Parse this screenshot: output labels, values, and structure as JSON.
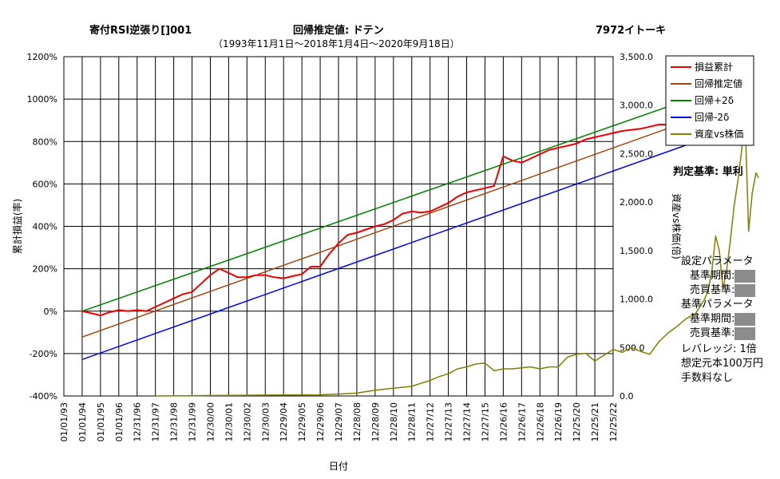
{
  "header": {
    "strategy": "寄付RSI逆張り[]001",
    "method": "回帰推定値: ドテン",
    "ticker": "7972イトーキ",
    "period": "（1993年11月1日〜2018年1月4日〜2020年9月18日）"
  },
  "side_panel": {
    "judgement": "判定基準: 単利",
    "setting_params": "設定パラメータ",
    "base_period": "基準期間:",
    "trade_criteria": "売買基準:",
    "base_params": "基準パラメータ",
    "base_period2": "基準期間:",
    "trade_criteria2": "売買基準:",
    "leverage": "レバレッジ: 1倍",
    "capital": "想定元本100万円",
    "fee": "手数料なし"
  },
  "chart_data": {
    "type": "line",
    "xlabel": "日付",
    "ylabel_left": "累計損益(率)",
    "ylabel_right": "資産vs株価(倍)",
    "y_left_range": [
      -400,
      1200
    ],
    "y_left_ticks": [
      "-400%",
      "-200%",
      "0%",
      "200%",
      "400%",
      "600%",
      "800%",
      "1000%",
      "1200%"
    ],
    "y_right_range": [
      0,
      3500
    ],
    "y_right_ticks": [
      "0.0",
      "500.0",
      "1,000.0",
      "1,500.0",
      "2,000.0",
      "2,500.0",
      "3,000.0",
      "3,500.0"
    ],
    "x_ticks": [
      "01/01/93",
      "01/01/94",
      "01/01/95",
      "01/01/96",
      "12/31/96",
      "12/31/97",
      "12/31/98",
      "12/31/99",
      "12/30/00",
      "12/30/01",
      "12/30/02",
      "12/30/03",
      "12/29/04",
      "12/29/05",
      "12/29/06",
      "12/29/07",
      "12/28/08",
      "12/28/09",
      "12/28/10",
      "12/28/11",
      "12/27/12",
      "12/27/13",
      "12/27/14",
      "12/27/15",
      "12/26/16",
      "12/26/17",
      "12/26/18",
      "12/26/19",
      "12/25/20",
      "12/25/21",
      "12/25/22"
    ],
    "grid": true,
    "legend_position": "top-right",
    "colors": {
      "pl": "#ee0000",
      "reg": "#a0420a",
      "up": "#008000",
      "dn": "#0000ee",
      "asset": "#808000"
    },
    "series": [
      {
        "name": "損益累計",
        "key": "pl",
        "axis": "left",
        "points": [
          [
            1.0,
            0
          ],
          [
            1.5,
            -10
          ],
          [
            2.0,
            -20
          ],
          [
            2.5,
            -5
          ],
          [
            3.0,
            5
          ],
          [
            3.5,
            0
          ],
          [
            4.0,
            5
          ],
          [
            4.5,
            0
          ],
          [
            5.0,
            20
          ],
          [
            5.5,
            40
          ],
          [
            6.0,
            60
          ],
          [
            6.5,
            80
          ],
          [
            7.0,
            90
          ],
          [
            7.5,
            130
          ],
          [
            8.0,
            170
          ],
          [
            8.5,
            200
          ],
          [
            9.0,
            180
          ],
          [
            9.5,
            160
          ],
          [
            10.0,
            160
          ],
          [
            10.5,
            170
          ],
          [
            11.0,
            170
          ],
          [
            11.5,
            160
          ],
          [
            12.0,
            155
          ],
          [
            12.5,
            165
          ],
          [
            13.0,
            175
          ],
          [
            13.5,
            210
          ],
          [
            14.0,
            210
          ],
          [
            14.5,
            270
          ],
          [
            15.0,
            320
          ],
          [
            15.5,
            360
          ],
          [
            16.0,
            370
          ],
          [
            16.5,
            385
          ],
          [
            17.0,
            400
          ],
          [
            17.5,
            410
          ],
          [
            18.0,
            430
          ],
          [
            18.5,
            460
          ],
          [
            19.0,
            470
          ],
          [
            19.5,
            465
          ],
          [
            20.0,
            470
          ],
          [
            20.5,
            490
          ],
          [
            21.0,
            510
          ],
          [
            21.5,
            540
          ],
          [
            22.0,
            560
          ],
          [
            22.5,
            570
          ],
          [
            23.0,
            580
          ],
          [
            23.5,
            590
          ],
          [
            24.0,
            730
          ],
          [
            24.5,
            710
          ],
          [
            25.0,
            700
          ],
          [
            25.5,
            720
          ],
          [
            26.0,
            740
          ],
          [
            26.5,
            760
          ],
          [
            27.0,
            770
          ],
          [
            27.5,
            780
          ],
          [
            28.0,
            790
          ],
          [
            28.5,
            810
          ],
          [
            29.0,
            820
          ],
          [
            29.5,
            830
          ],
          [
            30.0,
            840
          ],
          [
            30.5,
            850
          ],
          [
            31.0,
            855
          ],
          [
            31.5,
            860
          ],
          [
            32.0,
            870
          ],
          [
            32.5,
            880
          ],
          [
            33.0,
            880
          ],
          [
            33.5,
            890
          ],
          [
            34.0,
            900
          ],
          [
            34.5,
            890
          ],
          [
            35.0,
            910
          ],
          [
            35.5,
            920
          ],
          [
            36.0,
            910
          ],
          [
            36.5,
            925
          ]
        ]
      },
      {
        "name": "回帰推定値",
        "key": "reg",
        "axis": "left",
        "points": [
          [
            1.0,
            -122
          ],
          [
            36.5,
            970
          ]
        ]
      },
      {
        "name": "回帰+2δ",
        "key": "up",
        "axis": "left",
        "points": [
          [
            1.0,
            0
          ],
          [
            36.5,
            1070
          ]
        ]
      },
      {
        "name": "回帰-2δ",
        "key": "dn",
        "axis": "left",
        "points": [
          [
            1.0,
            -228
          ],
          [
            36.5,
            860
          ]
        ]
      },
      {
        "name": "資産vs株価",
        "key": "asset",
        "axis": "right",
        "points": [
          [
            5.0,
            0
          ],
          [
            8.0,
            5
          ],
          [
            12.0,
            10
          ],
          [
            14.0,
            12
          ],
          [
            15.0,
            20
          ],
          [
            16.0,
            30
          ],
          [
            17.0,
            60
          ],
          [
            18.0,
            80
          ],
          [
            19.0,
            100
          ],
          [
            19.5,
            130
          ],
          [
            20.0,
            160
          ],
          [
            20.5,
            200
          ],
          [
            21.0,
            230
          ],
          [
            21.5,
            280
          ],
          [
            22.0,
            300
          ],
          [
            22.5,
            330
          ],
          [
            23.0,
            340
          ],
          [
            23.5,
            260
          ],
          [
            24.0,
            280
          ],
          [
            24.5,
            280
          ],
          [
            25.0,
            290
          ],
          [
            25.5,
            300
          ],
          [
            26.0,
            280
          ],
          [
            26.5,
            300
          ],
          [
            27.0,
            300
          ],
          [
            27.5,
            400
          ],
          [
            28.0,
            430
          ],
          [
            28.5,
            440
          ],
          [
            29.0,
            360
          ],
          [
            29.5,
            420
          ],
          [
            30.0,
            480
          ],
          [
            30.5,
            450
          ],
          [
            31.0,
            500
          ],
          [
            31.5,
            460
          ],
          [
            32.0,
            430
          ],
          [
            32.5,
            560
          ],
          [
            33.0,
            650
          ],
          [
            33.5,
            720
          ],
          [
            34.0,
            800
          ],
          [
            34.5,
            850
          ],
          [
            35.0,
            1000
          ],
          [
            35.2,
            1100
          ],
          [
            35.4,
            1300
          ],
          [
            35.6,
            1650
          ],
          [
            35.8,
            1500
          ],
          [
            36.0,
            1100
          ],
          [
            36.2,
            1300
          ],
          [
            36.4,
            1600
          ],
          [
            36.6,
            1950
          ],
          [
            36.8,
            2200
          ],
          [
            37.0,
            2500
          ],
          [
            37.2,
            2900
          ],
          [
            37.4,
            1700
          ],
          [
            37.6,
            2100
          ],
          [
            37.8,
            2300
          ],
          [
            37.95,
            2250
          ]
        ]
      }
    ]
  }
}
